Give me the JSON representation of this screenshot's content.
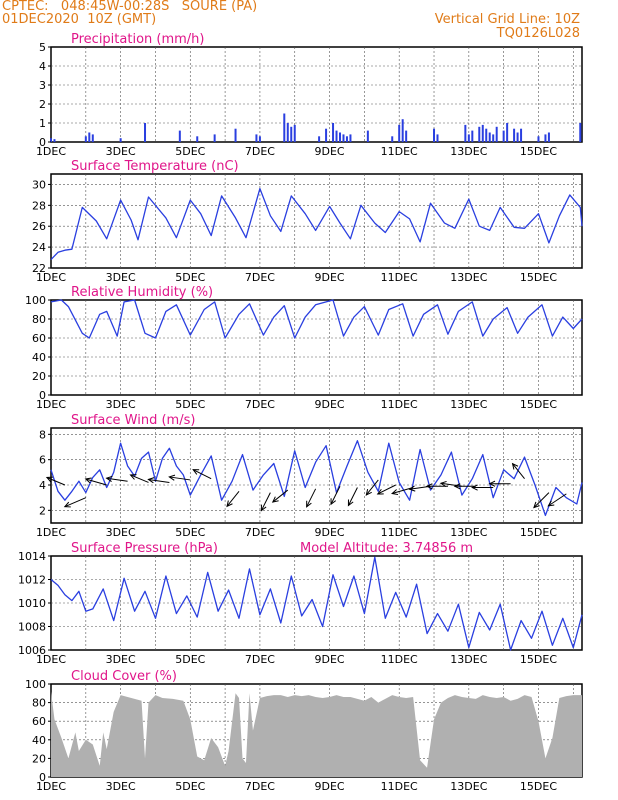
{
  "header": {
    "line1": "CPTEC:   048:45W-00:28S   SOURE (PA)",
    "line2": "01DEC2020  10Z (GMT)",
    "grid_note": "Vertical Grid Line: 10Z",
    "code": "TQ0126L028"
  },
  "x_ticks": [
    "1DEC",
    "3DEC",
    "5DEC",
    "7DEC",
    "9DEC",
    "11DEC",
    "13DEC",
    "15DEC"
  ],
  "colors": {
    "header": "#e07b18",
    "title": "#e0168a",
    "line": "#2a3fe0",
    "cloud": "#b0b0b0",
    "grid": "#555555"
  },
  "chart_data": [
    {
      "type": "bar",
      "title": "Precipitation (mm/h)",
      "xlim": [
        0,
        15.25
      ],
      "ylim": [
        0,
        5
      ],
      "yticks": [
        0,
        1,
        2,
        3,
        4,
        5
      ],
      "bars": [
        [
          0.0,
          0.2
        ],
        [
          0.1,
          0.15
        ],
        [
          1.0,
          0.3
        ],
        [
          1.1,
          0.5
        ],
        [
          1.2,
          0.4
        ],
        [
          2.0,
          0.2
        ],
        [
          2.7,
          1.0
        ],
        [
          3.7,
          0.6
        ],
        [
          4.2,
          0.3
        ],
        [
          4.7,
          0.4
        ],
        [
          5.3,
          0.7
        ],
        [
          5.9,
          0.4
        ],
        [
          6.0,
          0.3
        ],
        [
          6.7,
          1.5
        ],
        [
          6.8,
          1.0
        ],
        [
          6.9,
          0.8
        ],
        [
          7.0,
          0.9
        ],
        [
          7.7,
          0.3
        ],
        [
          7.9,
          0.7
        ],
        [
          8.1,
          1.0
        ],
        [
          8.2,
          0.6
        ],
        [
          8.3,
          0.5
        ],
        [
          8.4,
          0.4
        ],
        [
          8.5,
          0.3
        ],
        [
          8.6,
          0.4
        ],
        [
          9.1,
          0.6
        ],
        [
          9.8,
          0.3
        ],
        [
          10.0,
          0.9
        ],
        [
          10.1,
          1.2
        ],
        [
          10.2,
          0.6
        ],
        [
          11.0,
          0.7
        ],
        [
          11.1,
          0.4
        ],
        [
          11.9,
          0.9
        ],
        [
          12.0,
          0.4
        ],
        [
          12.1,
          0.6
        ],
        [
          12.3,
          0.8
        ],
        [
          12.4,
          0.9
        ],
        [
          12.5,
          0.7
        ],
        [
          12.6,
          0.5
        ],
        [
          12.7,
          0.4
        ],
        [
          12.8,
          0.8
        ],
        [
          13.0,
          0.6
        ],
        [
          13.1,
          1.0
        ],
        [
          13.3,
          0.7
        ],
        [
          13.4,
          0.5
        ],
        [
          13.5,
          0.7
        ],
        [
          14.0,
          0.3
        ],
        [
          14.2,
          0.4
        ],
        [
          14.3,
          0.5
        ],
        [
          15.2,
          1.0
        ]
      ]
    },
    {
      "type": "line",
      "title": "Surface Temperature (nC)",
      "xlim": [
        0,
        15.25
      ],
      "ylim": [
        22,
        31
      ],
      "yticks": [
        22,
        24,
        26,
        28,
        30
      ],
      "x": [
        0.0,
        0.2,
        0.4,
        0.6,
        0.9,
        1.3,
        1.6,
        2.0,
        2.3,
        2.5,
        2.8,
        3.3,
        3.6,
        4.0,
        4.3,
        4.6,
        4.9,
        5.3,
        5.6,
        6.0,
        6.3,
        6.6,
        6.9,
        7.3,
        7.6,
        8.0,
        8.3,
        8.6,
        8.9,
        9.3,
        9.6,
        10.0,
        10.3,
        10.6,
        10.9,
        11.3,
        11.6,
        12.0,
        12.3,
        12.6,
        12.9,
        13.3,
        13.6,
        14.0,
        14.3,
        14.6,
        14.9,
        15.2,
        15.25
      ],
      "y": [
        22.8,
        23.5,
        23.7,
        23.8,
        27.8,
        26.5,
        24.8,
        28.5,
        26.6,
        24.7,
        28.8,
        26.8,
        24.9,
        28.5,
        27.2,
        25.1,
        28.9,
        26.8,
        24.9,
        29.6,
        27.0,
        25.5,
        28.9,
        27.2,
        25.6,
        27.9,
        26.3,
        24.8,
        28.0,
        26.3,
        25.4,
        27.4,
        26.7,
        24.5,
        28.2,
        26.3,
        25.8,
        28.6,
        26.0,
        25.6,
        27.8,
        25.9,
        25.8,
        27.2,
        24.4,
        27.0,
        29.0,
        27.8,
        26.0
      ]
    },
    {
      "type": "line",
      "title": "Relative Humidity (%)",
      "xlim": [
        0,
        15.25
      ],
      "ylim": [
        0,
        100
      ],
      "yticks": [
        0,
        20,
        40,
        60,
        80,
        100
      ],
      "x": [
        0.0,
        0.3,
        0.5,
        0.9,
        1.1,
        1.4,
        1.6,
        1.9,
        2.1,
        2.4,
        2.7,
        3.0,
        3.3,
        3.6,
        4.0,
        4.4,
        4.7,
        5.0,
        5.4,
        5.7,
        6.1,
        6.4,
        6.7,
        7.0,
        7.3,
        7.6,
        8.1,
        8.4,
        8.7,
        9.0,
        9.4,
        9.7,
        10.1,
        10.4,
        10.7,
        11.1,
        11.4,
        11.7,
        12.1,
        12.4,
        12.7,
        13.1,
        13.4,
        13.7,
        14.1,
        14.4,
        14.7,
        15.0,
        15.25
      ],
      "y": [
        98,
        100,
        93,
        65,
        60,
        85,
        88,
        62,
        98,
        100,
        65,
        60,
        88,
        95,
        63,
        90,
        98,
        60,
        85,
        96,
        63,
        82,
        94,
        60,
        82,
        95,
        100,
        62,
        82,
        93,
        63,
        90,
        96,
        62,
        85,
        95,
        64,
        88,
        98,
        62,
        80,
        92,
        65,
        82,
        95,
        62,
        82,
        70,
        80
      ]
    },
    {
      "type": "line",
      "title": "Surface Wind (m/s)",
      "xlim": [
        0,
        15.25
      ],
      "ylim": [
        1,
        8.5
      ],
      "yticks": [
        2,
        4,
        6,
        8
      ],
      "x": [
        0.0,
        0.2,
        0.4,
        0.6,
        0.8,
        1.0,
        1.2,
        1.4,
        1.6,
        1.8,
        2.0,
        2.2,
        2.4,
        2.6,
        2.8,
        3.0,
        3.2,
        3.4,
        3.6,
        3.8,
        4.0,
        4.3,
        4.6,
        4.9,
        5.2,
        5.5,
        5.8,
        6.1,
        6.4,
        6.7,
        7.0,
        7.3,
        7.6,
        7.9,
        8.2,
        8.5,
        8.8,
        9.1,
        9.4,
        9.7,
        10.0,
        10.3,
        10.6,
        10.9,
        11.2,
        11.5,
        11.8,
        12.1,
        12.4,
        12.7,
        13.0,
        13.3,
        13.6,
        13.9,
        14.2,
        14.5,
        14.8,
        15.1,
        15.25
      ],
      "y": [
        5.2,
        3.5,
        2.8,
        3.5,
        4.3,
        3.4,
        4.6,
        5.2,
        3.8,
        5.0,
        7.3,
        5.5,
        4.7,
        6.1,
        6.6,
        4.3,
        6.1,
        6.9,
        5.5,
        4.8,
        3.2,
        4.8,
        6.3,
        2.8,
        4.3,
        6.4,
        3.6,
        4.8,
        5.7,
        3.1,
        6.7,
        3.8,
        5.8,
        7.1,
        3.4,
        5.5,
        7.5,
        5.0,
        3.5,
        7.3,
        4.2,
        2.8,
        6.8,
        3.6,
        4.8,
        6.6,
        3.2,
        4.5,
        6.4,
        3.0,
        5.2,
        4.5,
        6.2,
        4.0,
        1.6,
        3.8,
        3.0,
        2.5,
        4.2
      ],
      "arrows": [
        [
          0.4,
          4.0,
          -0.6,
          0.25
        ],
        [
          1.0,
          3.0,
          -0.7,
          -0.3
        ],
        [
          1.6,
          4.0,
          -0.7,
          0.2
        ],
        [
          2.2,
          4.3,
          -0.7,
          0.1
        ],
        [
          2.8,
          4.2,
          -0.6,
          0.25
        ],
        [
          3.4,
          4.2,
          -0.7,
          0.1
        ],
        [
          4.0,
          4.4,
          -0.7,
          0.1
        ],
        [
          4.6,
          4.5,
          -0.6,
          0.3
        ],
        [
          5.4,
          3.5,
          -0.4,
          -0.5
        ],
        [
          6.3,
          3.4,
          -0.3,
          -0.6
        ],
        [
          6.8,
          3.6,
          -0.5,
          -0.4
        ],
        [
          7.6,
          3.7,
          -0.3,
          -0.6
        ],
        [
          8.3,
          3.9,
          -0.3,
          -0.6
        ],
        [
          8.8,
          3.8,
          -0.3,
          -0.6
        ],
        [
          9.4,
          4.4,
          -0.4,
          -0.5
        ],
        [
          9.9,
          4.0,
          -0.6,
          -0.3
        ],
        [
          10.4,
          3.8,
          -0.7,
          -0.2
        ],
        [
          10.9,
          3.9,
          -0.7,
          -0.1
        ],
        [
          11.4,
          3.9,
          -0.7,
          0.0
        ],
        [
          11.8,
          3.9,
          -0.7,
          0.1
        ],
        [
          12.2,
          3.9,
          -0.7,
          0.0
        ],
        [
          12.7,
          3.8,
          -0.7,
          0.0
        ],
        [
          13.2,
          4.1,
          -0.7,
          0.0
        ],
        [
          13.6,
          4.5,
          -0.4,
          0.5
        ],
        [
          14.3,
          3.4,
          -0.5,
          -0.5
        ],
        [
          14.8,
          3.3,
          -0.6,
          -0.4
        ]
      ]
    },
    {
      "type": "line",
      "title": "Surface Pressure (hPa)",
      "subtitle": "Model Altitude: 3.74856 m",
      "xlim": [
        0,
        15.25
      ],
      "ylim": [
        1006,
        1014
      ],
      "yticks": [
        1006,
        1008,
        1010,
        1012,
        1014
      ],
      "x": [
        0.0,
        0.2,
        0.4,
        0.6,
        0.8,
        1.0,
        1.2,
        1.5,
        1.8,
        2.1,
        2.4,
        2.7,
        3.0,
        3.3,
        3.6,
        3.9,
        4.2,
        4.5,
        4.8,
        5.1,
        5.4,
        5.7,
        6.0,
        6.3,
        6.6,
        6.9,
        7.2,
        7.5,
        7.8,
        8.1,
        8.4,
        8.7,
        9.0,
        9.3,
        9.6,
        9.9,
        10.2,
        10.5,
        10.8,
        11.1,
        11.4,
        11.7,
        12.0,
        12.3,
        12.6,
        12.9,
        13.2,
        13.5,
        13.8,
        14.1,
        14.4,
        14.7,
        15.0,
        15.25
      ],
      "y": [
        1012.0,
        1011.5,
        1010.7,
        1010.2,
        1011.0,
        1009.3,
        1009.5,
        1011.2,
        1008.5,
        1012.1,
        1009.3,
        1011.0,
        1008.7,
        1012.3,
        1009.1,
        1010.6,
        1008.8,
        1012.6,
        1009.3,
        1011.1,
        1008.7,
        1012.9,
        1009.0,
        1011.2,
        1008.3,
        1012.3,
        1008.9,
        1010.3,
        1008.0,
        1012.4,
        1009.7,
        1012.3,
        1009.1,
        1013.9,
        1008.7,
        1010.9,
        1008.8,
        1011.6,
        1007.4,
        1009.1,
        1007.6,
        1009.9,
        1006.2,
        1009.2,
        1007.7,
        1009.9,
        1006.0,
        1008.5,
        1007.0,
        1009.3,
        1006.4,
        1008.7,
        1006.2,
        1009.0
      ]
    },
    {
      "type": "area",
      "title": "Cloud Cover (%)",
      "xlim": [
        0,
        15.25
      ],
      "ylim": [
        0,
        100
      ],
      "yticks": [
        0,
        20,
        40,
        60,
        80,
        100
      ],
      "x": [
        0.0,
        0.1,
        0.3,
        0.5,
        0.7,
        0.8,
        1.0,
        1.2,
        1.4,
        1.5,
        1.6,
        1.8,
        2.0,
        2.2,
        2.4,
        2.6,
        2.7,
        2.8,
        3.0,
        3.2,
        3.5,
        3.8,
        4.0,
        4.2,
        4.4,
        4.6,
        4.8,
        5.0,
        5.1,
        5.3,
        5.4,
        5.5,
        5.6,
        5.7,
        5.8,
        6.0,
        6.2,
        6.4,
        6.6,
        6.8,
        7.0,
        7.2,
        7.4,
        7.6,
        7.8,
        8.0,
        8.2,
        8.4,
        8.6,
        8.8,
        9.0,
        9.2,
        9.4,
        9.6,
        9.8,
        10.0,
        10.2,
        10.4,
        10.6,
        10.8,
        11.0,
        11.2,
        11.4,
        11.6,
        11.8,
        12.0,
        12.2,
        12.4,
        12.6,
        12.8,
        13.0,
        13.2,
        13.4,
        13.6,
        13.8,
        14.0,
        14.2,
        14.4,
        14.6,
        14.8,
        15.0,
        15.25
      ],
      "y": [
        92,
        62,
        42,
        20,
        48,
        28,
        40,
        35,
        12,
        48,
        30,
        70,
        88,
        86,
        84,
        82,
        20,
        80,
        88,
        85,
        84,
        82,
        62,
        22,
        18,
        42,
        32,
        12,
        28,
        90,
        85,
        20,
        15,
        90,
        50,
        85,
        87,
        88,
        88,
        86,
        88,
        87,
        88,
        86,
        85,
        86,
        88,
        86,
        86,
        84,
        82,
        86,
        80,
        84,
        88,
        86,
        85,
        86,
        18,
        10,
        62,
        80,
        85,
        88,
        86,
        85,
        84,
        88,
        86,
        85,
        86,
        82,
        84,
        88,
        86,
        60,
        20,
        42,
        85,
        87,
        88,
        88
      ]
    }
  ]
}
